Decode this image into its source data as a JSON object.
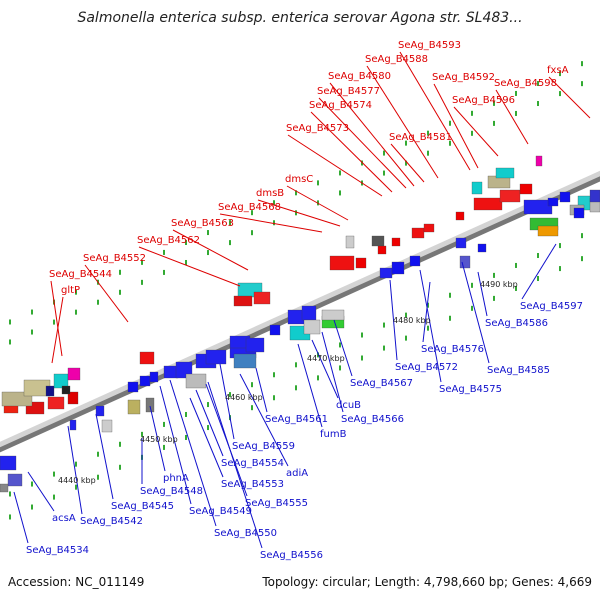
{
  "title": "Salmonella enterica subsp. enterica serovar Agona str. SL483...",
  "footer": {
    "accession": "Accession: NC_011149",
    "summary": "Topology: circular; Length: 4,798,660 bp; Genes: 4,669"
  },
  "colors": {
    "forward_label": "#dd0000",
    "reverse_label": "#1111cc",
    "backbone": "#aaaaaa",
    "tick_dot": "#33aa33"
  },
  "scale_ticks": [
    "4440 kbp",
    "4450 kbp",
    "4460 kbp",
    "4470 kbp",
    "4480 kbp",
    "4490 kbp"
  ],
  "forward_genes": [
    "gltP",
    "SeAg_B4544",
    "SeAg_B4552",
    "SeAg_B4562",
    "SeAg_B4563",
    "SeAg_B4568",
    "dmsB",
    "dmsC",
    "SeAg_B4573",
    "SeAg_B4574",
    "SeAg_B4577",
    "SeAg_B4580",
    "SeAg_B4581",
    "SeAg_B4588",
    "SeAg_B4593",
    "SeAg_B4592",
    "SeAg_B4596",
    "SeAg_B4598",
    "fxsA"
  ],
  "reverse_genes": [
    "acsA",
    "SeAg_B4534",
    "SeAg_B4542",
    "SeAg_B4545",
    "SeAg_B4548",
    "phnA",
    "SeAg_B4549",
    "SeAg_B4550",
    "SeAg_B4553",
    "SeAg_B4554",
    "SeAg_B4555",
    "SeAg_B4556",
    "SeAg_B4559",
    "adiA",
    "SeAg_B4561",
    "fumB",
    "dcuB",
    "SeAg_B4566",
    "SeAg_B4567",
    "SeAg_B4572",
    "SeAg_B4575",
    "SeAg_B4576",
    "SeAg_B4585",
    "SeAg_B4586",
    "SeAg_B4597"
  ]
}
